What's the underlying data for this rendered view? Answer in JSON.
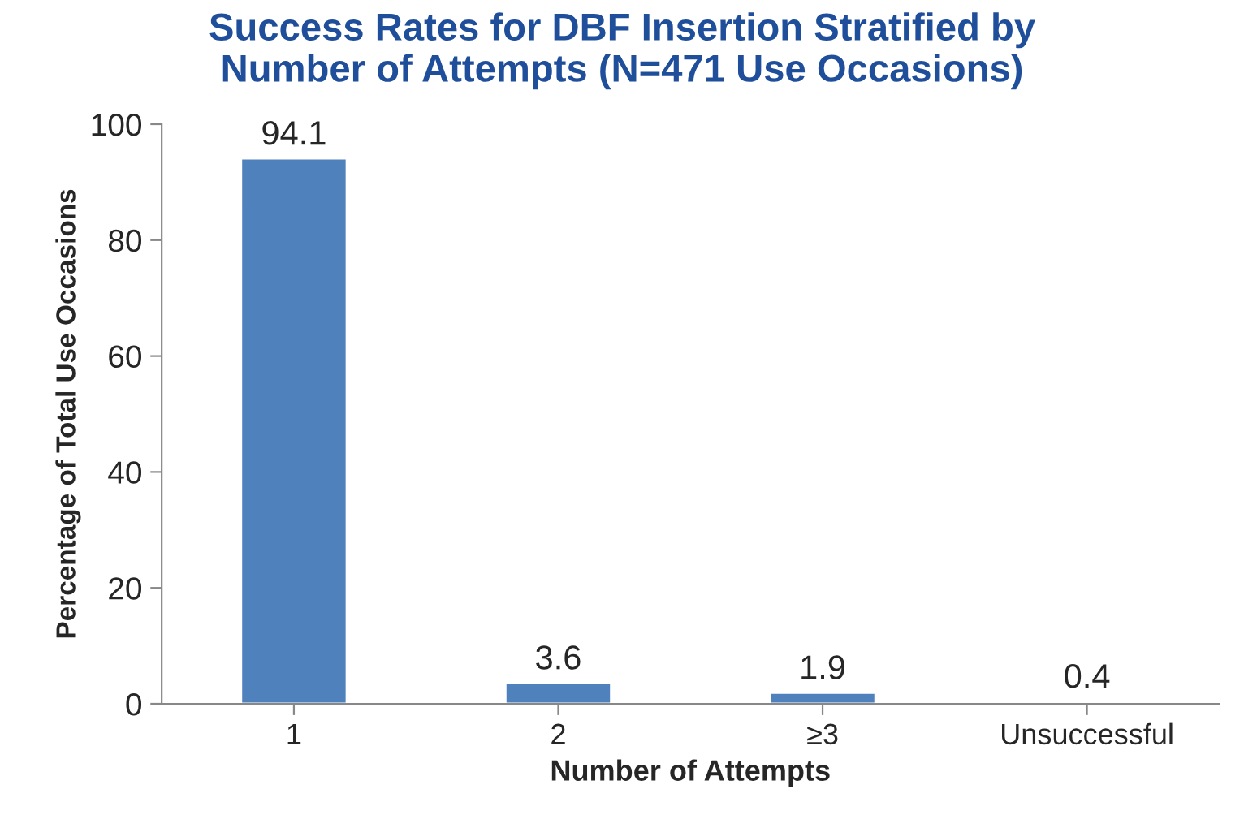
{
  "chart_data": {
    "type": "bar",
    "title": "Success Rates for DBF Insertion Stratified by\nNumber of Attempts (N=471 Use Occasions)",
    "xlabel": "Number of Attempts",
    "ylabel": "Percentage of Total Use Occasions",
    "categories": [
      "1",
      "2",
      "≥3",
      "Unsuccessful"
    ],
    "values": [
      94.1,
      3.6,
      1.9,
      0.4
    ],
    "color": "#4f81bd",
    "ylim": [
      0,
      100
    ],
    "yticks": [
      0,
      20,
      40,
      60,
      80,
      100
    ],
    "grid": false,
    "data_labels": true
  }
}
